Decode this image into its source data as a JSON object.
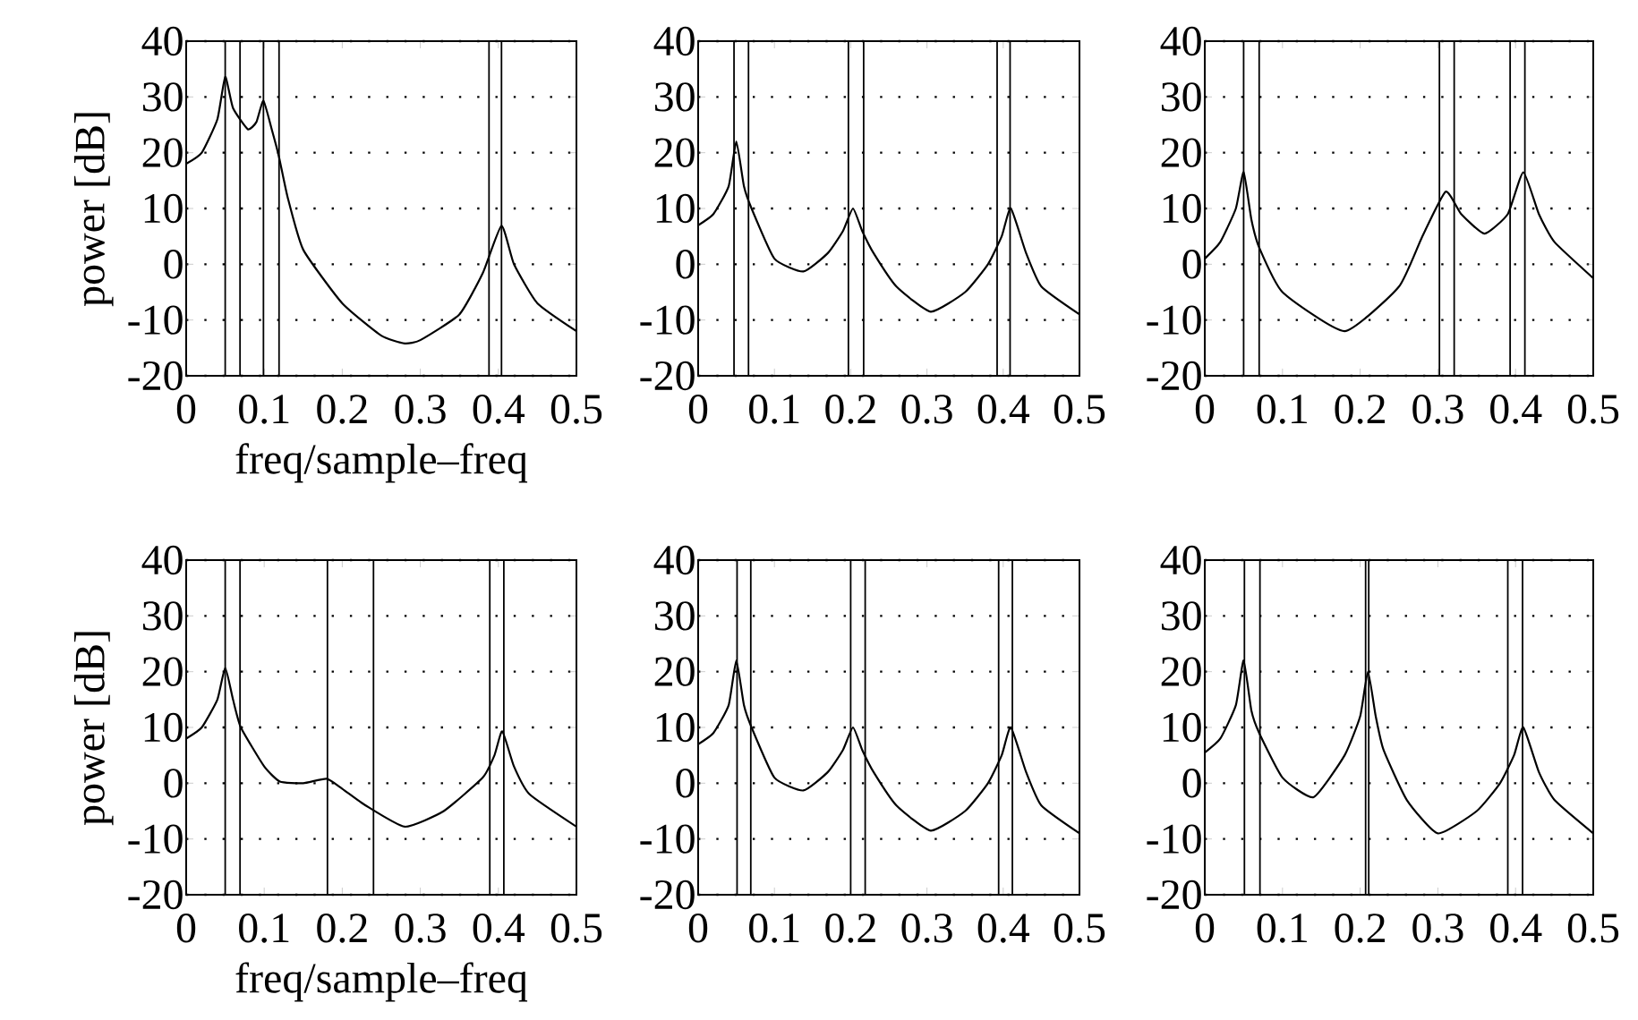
{
  "chart_data": [
    {
      "type": "line",
      "ylabel": "power [dB]",
      "xlabel": "freq/sample–freq",
      "xlim": [
        0,
        0.5
      ],
      "ylim": [
        -20,
        40
      ],
      "xticks": [
        0,
        0.1,
        0.2,
        0.3,
        0.4,
        0.5
      ],
      "yticks": [
        -20,
        -10,
        0,
        10,
        20,
        30,
        40
      ],
      "grid": "y",
      "x": [
        0,
        0.02,
        0.04,
        0.05,
        0.06,
        0.079,
        0.09,
        0.099,
        0.11,
        0.119,
        0.13,
        0.15,
        0.2,
        0.25,
        0.28,
        0.3,
        0.35,
        0.38,
        0.404,
        0.42,
        0.45,
        0.5
      ],
      "series": [
        {
          "color": "#000000",
          "values": [
            18,
            20,
            26,
            33.6,
            28,
            24.2,
            25.5,
            29.3,
            24,
            19.2,
            12,
            2.6,
            -7,
            -12.8,
            -14.2,
            -13.6,
            -9,
            -1.6,
            6.9,
            0,
            -7,
            -12
          ]
        }
      ],
      "ref_lines": [
        {
          "axis": "x",
          "value": 0.05
        },
        {
          "axis": "x",
          "value": 0.069
        },
        {
          "axis": "x",
          "value": 0.099
        },
        {
          "axis": "x",
          "value": 0.119
        },
        {
          "axis": "x",
          "value": 0.388
        },
        {
          "axis": "x",
          "value": 0.404
        }
      ]
    },
    {
      "type": "line",
      "xlim": [
        0,
        0.5
      ],
      "ylim": [
        -20,
        40
      ],
      "xticks": [
        0,
        0.1,
        0.2,
        0.3,
        0.4,
        0.5
      ],
      "yticks": [
        -20,
        -10,
        0,
        10,
        20,
        30,
        40
      ],
      "grid": "y",
      "x": [
        0,
        0.02,
        0.04,
        0.05,
        0.06,
        0.07,
        0.1,
        0.138,
        0.17,
        0.19,
        0.203,
        0.215,
        0.23,
        0.26,
        0.305,
        0.35,
        0.38,
        0.398,
        0.41,
        0.43,
        0.45,
        0.5
      ],
      "series": [
        {
          "color": "#000000",
          "values": [
            7,
            9,
            14,
            22,
            14,
            10,
            1,
            -1.3,
            2,
            6,
            10,
            6,
            2,
            -4,
            -8.5,
            -5,
            0,
            5,
            10,
            2,
            -4,
            -9
          ]
        }
      ],
      "ref_lines": [
        {
          "axis": "x",
          "value": 0.047
        },
        {
          "axis": "x",
          "value": 0.066
        },
        {
          "axis": "x",
          "value": 0.197
        },
        {
          "axis": "x",
          "value": 0.217
        },
        {
          "axis": "x",
          "value": 0.392
        },
        {
          "axis": "x",
          "value": 0.409
        }
      ]
    },
    {
      "type": "line",
      "xlim": [
        0,
        0.5
      ],
      "ylim": [
        -20,
        40
      ],
      "xticks": [
        0,
        0.1,
        0.2,
        0.3,
        0.4,
        0.5
      ],
      "yticks": [
        -20,
        -10,
        0,
        10,
        20,
        30,
        40
      ],
      "grid": "y",
      "x": [
        0,
        0.02,
        0.04,
        0.05,
        0.06,
        0.07,
        0.1,
        0.18,
        0.25,
        0.28,
        0.31,
        0.33,
        0.36,
        0.39,
        0.41,
        0.43,
        0.45,
        0.5
      ],
      "series": [
        {
          "color": "#000000",
          "values": [
            1,
            4,
            10,
            16.5,
            8,
            3,
            -5,
            -12,
            -4,
            5,
            13,
            9,
            5.5,
            9,
            16.5,
            9,
            4,
            -2.5
          ]
        }
      ],
      "ref_lines": [
        {
          "axis": "x",
          "value": 0.05
        },
        {
          "axis": "x",
          "value": 0.07
        },
        {
          "axis": "x",
          "value": 0.302
        },
        {
          "axis": "x",
          "value": 0.321
        },
        {
          "axis": "x",
          "value": 0.393
        },
        {
          "axis": "x",
          "value": 0.412
        }
      ]
    },
    {
      "type": "line",
      "ylabel": "power [dB]",
      "xlabel": "freq/sample–freq",
      "xlim": [
        0,
        0.5
      ],
      "ylim": [
        -20,
        40
      ],
      "xticks": [
        0,
        0.1,
        0.2,
        0.3,
        0.4,
        0.5
      ],
      "yticks": [
        -20,
        -10,
        0,
        10,
        20,
        30,
        40
      ],
      "grid": "y",
      "x": [
        0,
        0.02,
        0.04,
        0.05,
        0.06,
        0.07,
        0.1,
        0.12,
        0.15,
        0.18,
        0.2,
        0.23,
        0.28,
        0.33,
        0.38,
        0.395,
        0.405,
        0.42,
        0.44,
        0.5
      ],
      "series": [
        {
          "color": "#000000",
          "values": [
            8,
            10,
            15,
            20.7,
            15,
            10,
            3,
            0.3,
            0,
            0.8,
            -1,
            -4,
            -7.8,
            -5,
            1,
            5,
            9.3,
            3,
            -2,
            -7.8
          ]
        }
      ],
      "ref_lines": [
        {
          "axis": "x",
          "value": 0.05
        },
        {
          "axis": "x",
          "value": 0.069
        },
        {
          "axis": "x",
          "value": 0.181
        },
        {
          "axis": "x",
          "value": 0.24
        },
        {
          "axis": "x",
          "value": 0.389
        },
        {
          "axis": "x",
          "value": 0.407
        }
      ]
    },
    {
      "type": "line",
      "xlim": [
        0,
        0.5
      ],
      "ylim": [
        -20,
        40
      ],
      "xticks": [
        0,
        0.1,
        0.2,
        0.3,
        0.4,
        0.5
      ],
      "yticks": [
        -20,
        -10,
        0,
        10,
        20,
        30,
        40
      ],
      "grid": "y",
      "x": [
        0,
        0.02,
        0.04,
        0.05,
        0.06,
        0.07,
        0.1,
        0.138,
        0.17,
        0.19,
        0.203,
        0.215,
        0.23,
        0.26,
        0.305,
        0.35,
        0.38,
        0.398,
        0.41,
        0.43,
        0.45,
        0.5
      ],
      "series": [
        {
          "color": "#000000",
          "values": [
            7,
            9,
            14,
            22,
            14,
            10,
            1,
            -1.3,
            2,
            6,
            10,
            6,
            2,
            -4,
            -8.5,
            -5,
            0,
            5,
            10,
            2,
            -4,
            -9
          ]
        }
      ],
      "ref_lines": [
        {
          "axis": "x",
          "value": 0.051
        },
        {
          "axis": "x",
          "value": 0.069
        },
        {
          "axis": "x",
          "value": 0.2
        },
        {
          "axis": "x",
          "value": 0.219
        },
        {
          "axis": "x",
          "value": 0.394
        },
        {
          "axis": "x",
          "value": 0.412
        }
      ]
    },
    {
      "type": "line",
      "xlim": [
        0,
        0.5
      ],
      "ylim": [
        -20,
        40
      ],
      "xticks": [
        0,
        0.1,
        0.2,
        0.3,
        0.4,
        0.5
      ],
      "yticks": [
        -20,
        -10,
        0,
        10,
        20,
        30,
        40
      ],
      "grid": "y",
      "x": [
        0,
        0.02,
        0.04,
        0.05,
        0.06,
        0.07,
        0.1,
        0.14,
        0.18,
        0.2,
        0.21,
        0.22,
        0.23,
        0.26,
        0.3,
        0.35,
        0.38,
        0.398,
        0.41,
        0.43,
        0.45,
        0.5
      ],
      "series": [
        {
          "color": "#000000",
          "values": [
            5.5,
            8,
            14,
            22,
            13,
            9,
            1,
            -2.5,
            5,
            12,
            20,
            12,
            6,
            -3,
            -9,
            -5,
            0,
            5,
            10,
            2,
            -3,
            -9
          ]
        }
      ],
      "ref_lines": [
        {
          "axis": "x",
          "value": 0.051
        },
        {
          "axis": "x",
          "value": 0.071
        },
        {
          "axis": "x",
          "value": 0.207
        },
        {
          "axis": "x",
          "value": 0.211
        },
        {
          "axis": "x",
          "value": 0.39
        },
        {
          "axis": "x",
          "value": 0.409
        }
      ]
    }
  ]
}
